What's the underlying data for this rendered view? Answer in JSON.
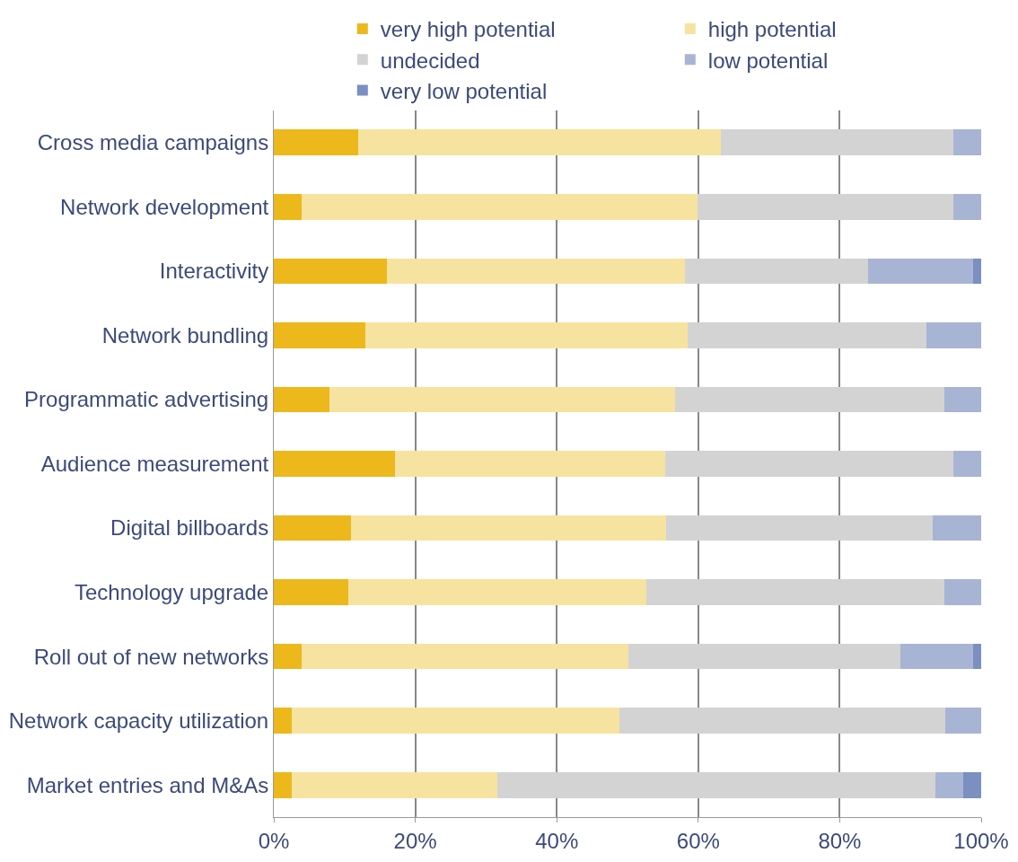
{
  "chart_data": {
    "type": "bar",
    "orientation": "horizontal",
    "stacked": true,
    "categories": [
      "Cross media campaigns",
      "Network development",
      "Interactivity",
      "Network bundling",
      "Programmatic advertising",
      "Audience measurement",
      "Digital billboards",
      "Technology upgrade",
      "Roll out of new networks",
      "Network capacity utilization",
      "Market entries and M&As"
    ],
    "series": [
      {
        "name": "very high potential",
        "color": "#edb81c",
        "values": [
          11.9,
          3.9,
          16.0,
          13.0,
          7.9,
          17.1,
          10.9,
          10.5,
          3.9,
          2.6,
          2.6
        ]
      },
      {
        "name": "high potential",
        "color": "#f7e3a0",
        "values": [
          51.3,
          56.0,
          42.1,
          45.5,
          48.8,
          38.2,
          44.5,
          42.2,
          46.2,
          46.2,
          29.0
        ]
      },
      {
        "name": "undecided",
        "color": "#d3d3d3",
        "values": [
          32.9,
          36.2,
          25.9,
          33.8,
          38.1,
          40.8,
          37.8,
          42.1,
          38.5,
          46.1,
          61.9
        ]
      },
      {
        "name": "low potential",
        "color": "#a8b4d3",
        "values": [
          3.9,
          3.9,
          14.8,
          7.7,
          5.2,
          3.9,
          6.8,
          5.2,
          10.2,
          5.1,
          4.0
        ]
      },
      {
        "name": "very low potential",
        "color": "#7b8fc0",
        "values": [
          0,
          0,
          1.2,
          0,
          0,
          0,
          0,
          0,
          1.2,
          0,
          2.5
        ]
      }
    ],
    "xlim": [
      0,
      100
    ],
    "xticks": [
      {
        "value": 0,
        "label": "0%"
      },
      {
        "value": 20,
        "label": "20%"
      },
      {
        "value": 40,
        "label": "40%"
      },
      {
        "value": 60,
        "label": "60%"
      },
      {
        "value": 80,
        "label": "80%"
      },
      {
        "value": 100,
        "label": "100%"
      }
    ],
    "grid": "x",
    "legend": "top"
  }
}
